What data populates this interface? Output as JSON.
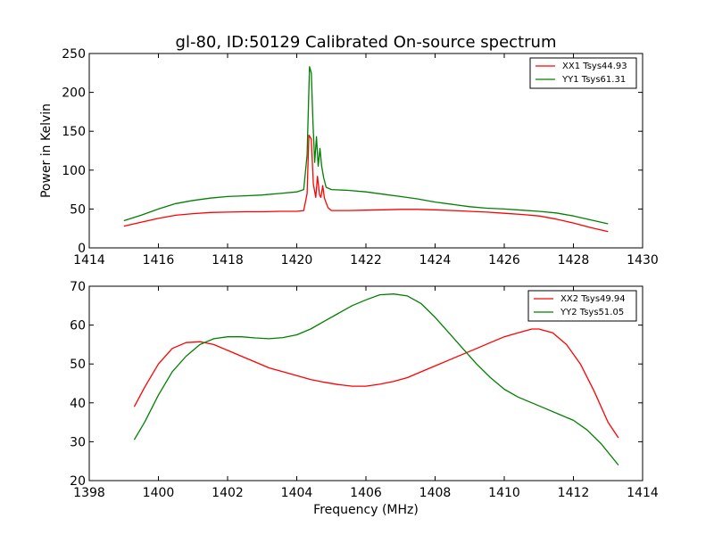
{
  "colors": {
    "red": "#ff0000",
    "green": "#008000"
  },
  "chart_data": [
    {
      "type": "line",
      "title": "gl-80, ID:50129 Calibrated On-source spectrum",
      "xlabel": "",
      "ylabel": "Power in Kelvin",
      "xlim": [
        1414,
        1430
      ],
      "ylim": [
        0,
        250
      ],
      "xticks": [
        "1414",
        "1416",
        "1418",
        "1420",
        "1422",
        "1424",
        "1426",
        "1428",
        "1430"
      ],
      "yticks": [
        "0",
        "50",
        "100",
        "150",
        "200",
        "250"
      ],
      "grid": false,
      "legend": "top-right",
      "series": [
        {
          "name": "XX1 Tsys44.93",
          "color": "#ff0000",
          "points": [
            [
              1415.0,
              28
            ],
            [
              1415.5,
              33
            ],
            [
              1416.0,
              38
            ],
            [
              1416.5,
              42
            ],
            [
              1417.0,
              44
            ],
            [
              1417.5,
              45.5
            ],
            [
              1418.0,
              46
            ],
            [
              1418.5,
              46.5
            ],
            [
              1419.0,
              46.5
            ],
            [
              1419.5,
              47
            ],
            [
              1420.0,
              47
            ],
            [
              1420.2,
              48
            ],
            [
              1420.3,
              70
            ],
            [
              1420.35,
              145
            ],
            [
              1420.42,
              140
            ],
            [
              1420.48,
              82
            ],
            [
              1420.55,
              65
            ],
            [
              1420.6,
              92
            ],
            [
              1420.66,
              68
            ],
            [
              1420.7,
              65
            ],
            [
              1420.75,
              80
            ],
            [
              1420.8,
              64
            ],
            [
              1420.9,
              52
            ],
            [
              1421.0,
              48
            ],
            [
              1421.5,
              48
            ],
            [
              1422.0,
              48.5
            ],
            [
              1422.5,
              49
            ],
            [
              1423.0,
              49.5
            ],
            [
              1423.5,
              49.5
            ],
            [
              1424.0,
              49
            ],
            [
              1424.5,
              48
            ],
            [
              1425.0,
              47
            ],
            [
              1425.5,
              46
            ],
            [
              1426.0,
              44.5
            ],
            [
              1426.5,
              43
            ],
            [
              1427.0,
              41
            ],
            [
              1427.5,
              37
            ],
            [
              1428.0,
              32
            ],
            [
              1428.5,
              26
            ],
            [
              1429.0,
              21
            ]
          ]
        },
        {
          "name": "YY1 Tsys61.31",
          "color": "#008000",
          "points": [
            [
              1415.0,
              35
            ],
            [
              1415.5,
              42
            ],
            [
              1416.0,
              50
            ],
            [
              1416.5,
              57
            ],
            [
              1417.0,
              61
            ],
            [
              1417.5,
              64
            ],
            [
              1418.0,
              66
            ],
            [
              1418.5,
              67
            ],
            [
              1419.0,
              68
            ],
            [
              1419.5,
              70
            ],
            [
              1420.0,
              72
            ],
            [
              1420.2,
              75
            ],
            [
              1420.3,
              120
            ],
            [
              1420.37,
              233
            ],
            [
              1420.42,
              225
            ],
            [
              1420.47,
              160
            ],
            [
              1420.52,
              110
            ],
            [
              1420.57,
              143
            ],
            [
              1420.62,
              105
            ],
            [
              1420.67,
              128
            ],
            [
              1420.72,
              105
            ],
            [
              1420.78,
              90
            ],
            [
              1420.85,
              78
            ],
            [
              1421.0,
              75
            ],
            [
              1421.5,
              74
            ],
            [
              1422.0,
              72
            ],
            [
              1422.5,
              69
            ],
            [
              1423.0,
              66
            ],
            [
              1423.5,
              63
            ],
            [
              1424.0,
              59
            ],
            [
              1424.5,
              56
            ],
            [
              1425.0,
              53
            ],
            [
              1425.5,
              51
            ],
            [
              1426.0,
              50
            ],
            [
              1426.5,
              48.5
            ],
            [
              1427.0,
              47
            ],
            [
              1427.5,
              45
            ],
            [
              1428.0,
              41
            ],
            [
              1428.5,
              36
            ],
            [
              1429.0,
              31
            ]
          ]
        }
      ]
    },
    {
      "type": "line",
      "title": "",
      "xlabel": "Frequency (MHz)",
      "ylabel": "",
      "xlim": [
        1398,
        1414
      ],
      "ylim": [
        20,
        70
      ],
      "xticks": [
        "1398",
        "1400",
        "1402",
        "1404",
        "1406",
        "1408",
        "1410",
        "1412",
        "1414"
      ],
      "yticks": [
        "20",
        "30",
        "40",
        "50",
        "60",
        "70"
      ],
      "grid": false,
      "legend": "top-right",
      "series": [
        {
          "name": "XX2 Tsys49.94",
          "color": "#ff0000",
          "points": [
            [
              1399.3,
              39
            ],
            [
              1399.6,
              44
            ],
            [
              1400.0,
              50
            ],
            [
              1400.4,
              54
            ],
            [
              1400.8,
              55.5
            ],
            [
              1401.2,
              55.7
            ],
            [
              1401.6,
              55
            ],
            [
              1402.0,
              53.5
            ],
            [
              1402.4,
              52
            ],
            [
              1402.8,
              50.5
            ],
            [
              1403.2,
              49
            ],
            [
              1403.6,
              48
            ],
            [
              1404.0,
              47
            ],
            [
              1404.4,
              46
            ],
            [
              1404.8,
              45.3
            ],
            [
              1405.2,
              44.7
            ],
            [
              1405.6,
              44.3
            ],
            [
              1406.0,
              44.3
            ],
            [
              1406.4,
              44.8
            ],
            [
              1406.8,
              45.5
            ],
            [
              1407.2,
              46.5
            ],
            [
              1407.6,
              48
            ],
            [
              1408.0,
              49.5
            ],
            [
              1408.4,
              51
            ],
            [
              1408.8,
              52.5
            ],
            [
              1409.2,
              54
            ],
            [
              1409.6,
              55.5
            ],
            [
              1410.0,
              57
            ],
            [
              1410.4,
              58
            ],
            [
              1410.8,
              59
            ],
            [
              1411.0,
              59
            ],
            [
              1411.4,
              58
            ],
            [
              1411.8,
              55
            ],
            [
              1412.2,
              50
            ],
            [
              1412.6,
              43
            ],
            [
              1413.0,
              35
            ],
            [
              1413.3,
              31
            ]
          ]
        },
        {
          "name": "YY2 Tsys51.05",
          "color": "#008000",
          "points": [
            [
              1399.3,
              30.5
            ],
            [
              1399.6,
              35
            ],
            [
              1400.0,
              42
            ],
            [
              1400.4,
              48
            ],
            [
              1400.8,
              52
            ],
            [
              1401.2,
              55
            ],
            [
              1401.6,
              56.5
            ],
            [
              1402.0,
              57
            ],
            [
              1402.4,
              57
            ],
            [
              1402.8,
              56.7
            ],
            [
              1403.2,
              56.5
            ],
            [
              1403.6,
              56.8
            ],
            [
              1404.0,
              57.5
            ],
            [
              1404.4,
              59
            ],
            [
              1404.8,
              61
            ],
            [
              1405.2,
              63
            ],
            [
              1405.6,
              65
            ],
            [
              1406.0,
              66.5
            ],
            [
              1406.4,
              67.8
            ],
            [
              1406.8,
              68
            ],
            [
              1407.2,
              67.5
            ],
            [
              1407.6,
              65.5
            ],
            [
              1408.0,
              62
            ],
            [
              1408.4,
              58
            ],
            [
              1408.8,
              54
            ],
            [
              1409.2,
              50
            ],
            [
              1409.6,
              46.5
            ],
            [
              1410.0,
              43.5
            ],
            [
              1410.4,
              41.5
            ],
            [
              1410.8,
              40
            ],
            [
              1411.2,
              38.5
            ],
            [
              1411.6,
              37
            ],
            [
              1412.0,
              35.5
            ],
            [
              1412.4,
              33
            ],
            [
              1412.8,
              29.5
            ],
            [
              1413.3,
              24
            ]
          ]
        }
      ]
    }
  ]
}
